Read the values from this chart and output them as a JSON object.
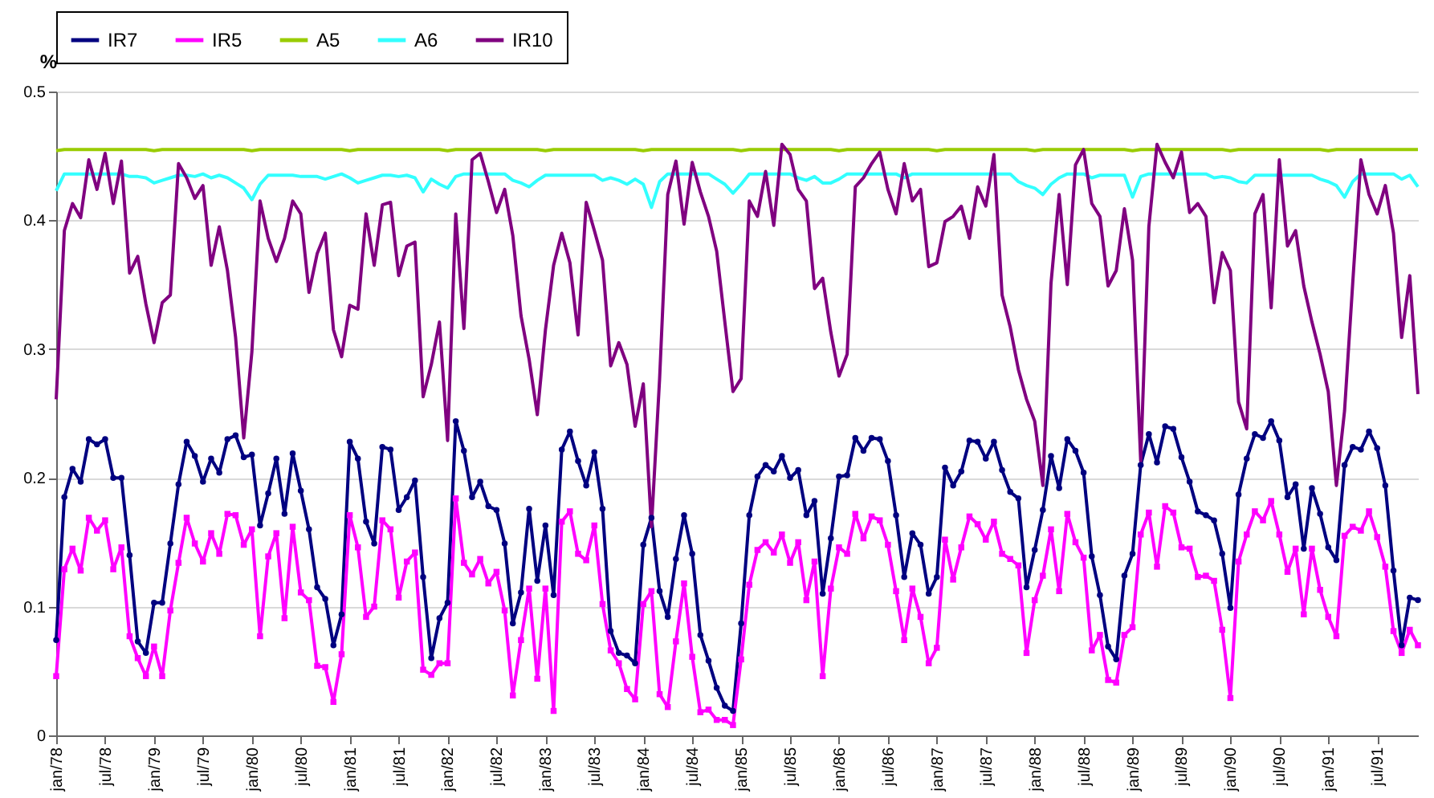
{
  "chart_data": {
    "type": "line",
    "ylabel": "%",
    "ylim": [
      0,
      0.5
    ],
    "yticks": [
      0,
      0.1,
      0.2,
      0.3,
      0.4,
      0.5
    ],
    "grid": "y",
    "legend": "top",
    "categories": [
      "jan/78",
      null,
      null,
      null,
      null,
      null,
      "jul/78",
      null,
      null,
      null,
      null,
      null,
      "jan/79",
      null,
      null,
      null,
      null,
      null,
      "jul/79",
      null,
      null,
      null,
      null,
      null,
      "jan/80",
      null,
      null,
      null,
      null,
      null,
      "jul/80",
      null,
      null,
      null,
      null,
      null,
      "jan/81",
      null,
      null,
      null,
      null,
      null,
      "jul/81",
      null,
      null,
      null,
      null,
      null,
      "jan/82",
      null,
      null,
      null,
      null,
      null,
      "jul/82",
      null,
      null,
      null,
      null,
      null,
      "jan/83",
      null,
      null,
      null,
      null,
      null,
      "jul/83",
      null,
      null,
      null,
      null,
      null,
      "jan/84",
      null,
      null,
      null,
      null,
      null,
      "jul/84",
      null,
      null,
      null,
      null,
      null,
      "jan/85",
      null,
      null,
      null,
      null,
      null,
      "jul/85",
      null,
      null,
      null,
      null,
      null,
      "jan/86",
      null,
      null,
      null,
      null,
      null,
      "jul/86",
      null,
      null,
      null,
      null,
      null,
      "jan/87",
      null,
      null,
      null,
      null,
      null,
      "jul/87",
      null,
      null,
      null,
      null,
      null,
      "jan/88",
      null,
      null,
      null,
      null,
      null,
      "jul/88",
      null,
      null,
      null,
      null,
      null,
      "jan/89",
      null,
      null,
      null,
      null,
      null,
      "jul/89",
      null,
      null,
      null,
      null,
      null,
      "jan/90",
      null,
      null,
      null,
      null,
      null,
      "jul/90",
      null,
      null,
      null,
      null,
      null,
      "jan/91",
      null,
      null,
      null,
      null,
      null,
      "jul/91",
      null,
      null,
      null,
      null,
      null
    ],
    "series": [
      {
        "name": "IR7",
        "color": "#000080",
        "marker": "circle",
        "values": [
          0.074,
          0.185,
          0.207,
          0.197,
          0.23,
          0.226,
          0.23,
          0.2,
          0.2,
          0.14,
          0.073,
          0.064,
          0.103,
          0.103,
          0.149,
          0.195,
          0.228,
          0.217,
          0.197,
          0.215,
          0.204,
          0.23,
          0.233,
          0.216,
          0.218,
          0.163,
          0.188,
          0.215,
          0.172,
          0.219,
          0.19,
          0.16,
          0.115,
          0.106,
          0.07,
          0.094,
          0.228,
          0.215,
          0.166,
          0.149,
          0.224,
          0.222,
          0.175,
          0.185,
          0.198,
          0.123,
          0.06,
          0.091,
          0.103,
          0.244,
          0.221,
          0.185,
          0.197,
          0.178,
          0.175,
          0.149,
          0.087,
          0.111,
          0.176,
          0.12,
          0.163,
          0.109,
          0.222,
          0.236,
          0.213,
          0.194,
          0.22,
          0.176,
          0.081,
          0.064,
          0.062,
          0.056,
          0.148,
          0.169,
          0.112,
          0.092,
          0.137,
          0.171,
          0.141,
          0.078,
          0.058,
          0.037,
          0.023,
          0.019,
          0.087,
          0.171,
          0.201,
          0.21,
          0.205,
          0.217,
          0.2,
          0.206,
          0.171,
          0.182,
          0.11,
          0.153,
          0.201,
          0.202,
          0.231,
          0.221,
          0.231,
          0.23,
          0.213,
          0.171,
          0.123,
          0.157,
          0.148,
          0.11,
          0.123,
          0.208,
          0.194,
          0.205,
          0.229,
          0.228,
          0.215,
          0.228,
          0.206,
          0.189,
          0.184,
          0.115,
          0.144,
          0.175,
          0.217,
          0.192,
          0.23,
          0.221,
          0.204,
          0.139,
          0.109,
          0.069,
          0.059,
          0.124,
          0.141,
          0.21,
          0.234,
          0.212,
          0.24,
          0.238,
          0.216,
          0.197,
          0.174,
          0.171,
          0.167,
          0.141,
          0.099,
          0.187,
          0.215,
          0.234,
          0.231,
          0.244,
          0.229,
          0.185,
          0.195,
          0.145,
          0.192,
          0.172,
          0.146,
          0.136,
          0.21,
          0.224,
          0.222,
          0.236,
          0.223,
          0.194,
          0.128,
          0.07,
          0.107,
          0.105
        ]
      },
      {
        "name": "IR5",
        "color": "#ff00ff",
        "marker": "square",
        "values": [
          0.046,
          0.129,
          0.145,
          0.128,
          0.169,
          0.159,
          0.167,
          0.129,
          0.146,
          0.077,
          0.06,
          0.046,
          0.069,
          0.046,
          0.097,
          0.134,
          0.169,
          0.149,
          0.135,
          0.157,
          0.141,
          0.172,
          0.171,
          0.148,
          0.16,
          0.077,
          0.139,
          0.157,
          0.091,
          0.162,
          0.111,
          0.105,
          0.054,
          0.053,
          0.026,
          0.063,
          0.171,
          0.146,
          0.092,
          0.1,
          0.167,
          0.16,
          0.107,
          0.135,
          0.142,
          0.051,
          0.047,
          0.056,
          0.056,
          0.184,
          0.134,
          0.125,
          0.137,
          0.118,
          0.127,
          0.097,
          0.031,
          0.074,
          0.114,
          0.044,
          0.114,
          0.019,
          0.166,
          0.174,
          0.141,
          0.136,
          0.163,
          0.102,
          0.066,
          0.056,
          0.036,
          0.028,
          0.102,
          0.112,
          0.032,
          0.022,
          0.073,
          0.118,
          0.061,
          0.018,
          0.02,
          0.012,
          0.012,
          0.008,
          0.059,
          0.117,
          0.144,
          0.15,
          0.142,
          0.156,
          0.134,
          0.15,
          0.105,
          0.135,
          0.046,
          0.114,
          0.146,
          0.141,
          0.172,
          0.153,
          0.17,
          0.167,
          0.148,
          0.112,
          0.074,
          0.114,
          0.092,
          0.056,
          0.068,
          0.152,
          0.121,
          0.146,
          0.17,
          0.164,
          0.152,
          0.166,
          0.141,
          0.137,
          0.132,
          0.064,
          0.105,
          0.124,
          0.16,
          0.112,
          0.172,
          0.15,
          0.138,
          0.066,
          0.078,
          0.043,
          0.041,
          0.078,
          0.084,
          0.156,
          0.173,
          0.131,
          0.178,
          0.173,
          0.146,
          0.145,
          0.123,
          0.124,
          0.12,
          0.082,
          0.029,
          0.135,
          0.156,
          0.174,
          0.167,
          0.182,
          0.156,
          0.127,
          0.145,
          0.094,
          0.145,
          0.113,
          0.092,
          0.077,
          0.155,
          0.162,
          0.159,
          0.174,
          0.154,
          0.131,
          0.081,
          0.064,
          0.082,
          0.07
        ]
      },
      {
        "name": "A5",
        "color": "#99cc00",
        "values": [
          0.454,
          0.455,
          0.455,
          0.455,
          0.455,
          0.455,
          0.455,
          0.455,
          0.455,
          0.455,
          0.455,
          0.455,
          0.454,
          0.455,
          0.455,
          0.455,
          0.455,
          0.455,
          0.455,
          0.455,
          0.455,
          0.455,
          0.455,
          0.455,
          0.454,
          0.455,
          0.455,
          0.455,
          0.455,
          0.455,
          0.455,
          0.455,
          0.455,
          0.455,
          0.455,
          0.455,
          0.454,
          0.455,
          0.455,
          0.455,
          0.455,
          0.455,
          0.455,
          0.455,
          0.455,
          0.455,
          0.455,
          0.455,
          0.454,
          0.455,
          0.455,
          0.455,
          0.455,
          0.455,
          0.455,
          0.455,
          0.455,
          0.455,
          0.455,
          0.455,
          0.454,
          0.455,
          0.455,
          0.455,
          0.455,
          0.455,
          0.455,
          0.455,
          0.455,
          0.455,
          0.455,
          0.455,
          0.454,
          0.455,
          0.455,
          0.455,
          0.455,
          0.455,
          0.455,
          0.455,
          0.455,
          0.455,
          0.455,
          0.455,
          0.454,
          0.455,
          0.455,
          0.455,
          0.455,
          0.455,
          0.455,
          0.455,
          0.455,
          0.455,
          0.455,
          0.455,
          0.454,
          0.455,
          0.455,
          0.455,
          0.455,
          0.455,
          0.455,
          0.455,
          0.455,
          0.455,
          0.455,
          0.455,
          0.454,
          0.455,
          0.455,
          0.455,
          0.455,
          0.455,
          0.455,
          0.455,
          0.455,
          0.455,
          0.455,
          0.455,
          0.454,
          0.455,
          0.455,
          0.455,
          0.455,
          0.455,
          0.455,
          0.455,
          0.455,
          0.455,
          0.455,
          0.455,
          0.454,
          0.455,
          0.455,
          0.455,
          0.455,
          0.455,
          0.455,
          0.455,
          0.455,
          0.455,
          0.455,
          0.455,
          0.454,
          0.455,
          0.455,
          0.455,
          0.455,
          0.455,
          0.455,
          0.455,
          0.455,
          0.455,
          0.455,
          0.455,
          0.454,
          0.455,
          0.455,
          0.455,
          0.455,
          0.455,
          0.455,
          0.455,
          0.455,
          0.455,
          0.455,
          0.455
        ]
      },
      {
        "name": "A6",
        "color": "#33ffff",
        "values": [
          0.423,
          0.436,
          0.436,
          0.436,
          0.436,
          0.436,
          0.436,
          0.436,
          0.436,
          0.434,
          0.434,
          0.433,
          0.429,
          0.431,
          0.433,
          0.435,
          0.435,
          0.434,
          0.436,
          0.433,
          0.435,
          0.433,
          0.429,
          0.425,
          0.416,
          0.428,
          0.435,
          0.435,
          0.435,
          0.435,
          0.434,
          0.434,
          0.434,
          0.432,
          0.434,
          0.436,
          0.433,
          0.429,
          0.431,
          0.433,
          0.435,
          0.435,
          0.434,
          0.435,
          0.433,
          0.422,
          0.432,
          0.428,
          0.425,
          0.434,
          0.436,
          0.436,
          0.436,
          0.436,
          0.436,
          0.436,
          0.431,
          0.429,
          0.426,
          0.431,
          0.435,
          0.435,
          0.435,
          0.435,
          0.435,
          0.435,
          0.435,
          0.431,
          0.433,
          0.431,
          0.428,
          0.432,
          0.428,
          0.41,
          0.43,
          0.436,
          0.436,
          0.436,
          0.436,
          0.436,
          0.436,
          0.432,
          0.428,
          0.421,
          0.428,
          0.436,
          0.436,
          0.436,
          0.436,
          0.436,
          0.436,
          0.433,
          0.431,
          0.434,
          0.429,
          0.429,
          0.432,
          0.436,
          0.436,
          0.436,
          0.436,
          0.436,
          0.436,
          0.436,
          0.433,
          0.436,
          0.436,
          0.436,
          0.436,
          0.436,
          0.436,
          0.436,
          0.436,
          0.436,
          0.436,
          0.436,
          0.436,
          0.436,
          0.43,
          0.427,
          0.425,
          0.42,
          0.428,
          0.433,
          0.436,
          0.436,
          0.436,
          0.433,
          0.435,
          0.435,
          0.435,
          0.435,
          0.418,
          0.434,
          0.436,
          0.436,
          0.436,
          0.436,
          0.436,
          0.436,
          0.436,
          0.436,
          0.433,
          0.434,
          0.433,
          0.43,
          0.429,
          0.435,
          0.435,
          0.435,
          0.435,
          0.435,
          0.435,
          0.435,
          0.435,
          0.432,
          0.43,
          0.427,
          0.418,
          0.43,
          0.436,
          0.436,
          0.436,
          0.436,
          0.436,
          0.432,
          0.435,
          0.426
        ]
      },
      {
        "name": "IR10",
        "color": "#800080",
        "values": [
          0.261,
          0.392,
          0.413,
          0.402,
          0.447,
          0.424,
          0.452,
          0.413,
          0.446,
          0.359,
          0.372,
          0.335,
          0.305,
          0.336,
          0.342,
          0.444,
          0.433,
          0.417,
          0.427,
          0.365,
          0.395,
          0.361,
          0.309,
          0.231,
          0.298,
          0.415,
          0.386,
          0.368,
          0.386,
          0.415,
          0.405,
          0.344,
          0.374,
          0.39,
          0.315,
          0.294,
          0.334,
          0.331,
          0.405,
          0.365,
          0.412,
          0.414,
          0.357,
          0.38,
          0.383,
          0.263,
          0.288,
          0.321,
          0.229,
          0.405,
          0.316,
          0.447,
          0.452,
          0.43,
          0.406,
          0.424,
          0.388,
          0.326,
          0.292,
          0.249,
          0.315,
          0.365,
          0.39,
          0.367,
          0.311,
          0.414,
          0.392,
          0.369,
          0.287,
          0.305,
          0.288,
          0.24,
          0.273,
          0.162,
          0.277,
          0.42,
          0.446,
          0.397,
          0.445,
          0.422,
          0.403,
          0.376,
          0.321,
          0.267,
          0.277,
          0.415,
          0.403,
          0.438,
          0.396,
          0.459,
          0.451,
          0.424,
          0.415,
          0.347,
          0.355,
          0.313,
          0.279,
          0.296,
          0.426,
          0.433,
          0.444,
          0.453,
          0.424,
          0.405,
          0.444,
          0.415,
          0.424,
          0.364,
          0.367,
          0.399,
          0.403,
          0.411,
          0.386,
          0.426,
          0.411,
          0.451,
          0.342,
          0.317,
          0.284,
          0.261,
          0.244,
          0.194,
          0.351,
          0.42,
          0.35,
          0.443,
          0.455,
          0.413,
          0.403,
          0.349,
          0.361,
          0.409,
          0.369,
          0.213,
          0.395,
          0.459,
          0.445,
          0.433,
          0.453,
          0.406,
          0.413,
          0.403,
          0.336,
          0.375,
          0.361,
          0.259,
          0.238,
          0.405,
          0.42,
          0.332,
          0.447,
          0.38,
          0.392,
          0.349,
          0.321,
          0.296,
          0.267,
          0.194,
          0.252,
          0.351,
          0.447,
          0.42,
          0.405,
          0.427,
          0.39,
          0.309,
          0.357,
          0.265
        ]
      }
    ]
  }
}
